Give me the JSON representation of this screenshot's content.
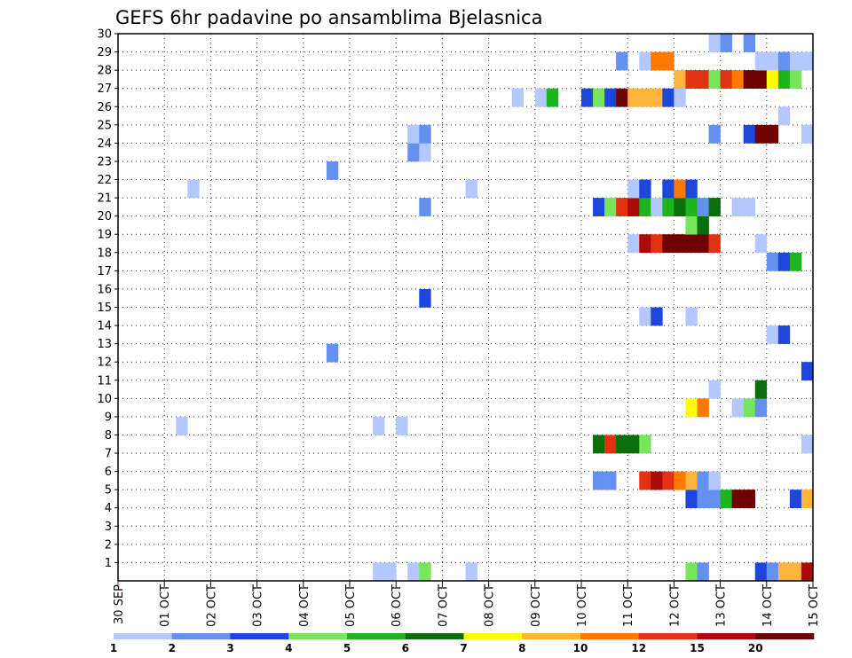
{
  "chart_data": {
    "type": "heatmap",
    "title": "GEFS 6hr padavine po ansamblima Bjelasnica",
    "x_tick_labels": [
      "30 SEP",
      "01 OCT",
      "02 OCT",
      "03 OCT",
      "04 OCT",
      "05 OCT",
      "06 OCT",
      "07 OCT",
      "08 OCT",
      "09 OCT",
      "10 OCT",
      "11 OCT",
      "12 OCT",
      "13 OCT",
      "14 OCT",
      "15 OCT"
    ],
    "y_tick_labels": [
      "1",
      "2",
      "3",
      "4",
      "5",
      "6",
      "7",
      "8",
      "9",
      "10",
      "11",
      "12",
      "13",
      "14",
      "15",
      "16",
      "17",
      "18",
      "19",
      "20",
      "21",
      "22",
      "23",
      "24",
      "25",
      "26",
      "27",
      "28",
      "29",
      "30"
    ],
    "x_unit": "6-hour step from 30 SEP 00Z",
    "x_range": [
      0,
      60
    ],
    "y_range": [
      0,
      30
    ],
    "grid": true,
    "colorbar": {
      "labels": [
        "1",
        "2",
        "3",
        "4",
        "5",
        "6",
        "7",
        "8",
        "10",
        "12",
        "15",
        "20"
      ],
      "colors": [
        "#b4c8ff",
        "#6490f0",
        "#1e46dc",
        "#78e65a",
        "#1eb41e",
        "#0a6e0a",
        "#ffff00",
        "#ffb43c",
        "#ff7800",
        "#e13214",
        "#aa0a0a",
        "#6e0000"
      ]
    },
    "cells": [
      {
        "t": 49,
        "m": 0,
        "c": 4
      },
      {
        "t": 50,
        "m": 0,
        "c": 2
      },
      {
        "t": 55,
        "m": 0,
        "c": 3
      },
      {
        "t": 56,
        "m": 0,
        "c": 2
      },
      {
        "t": 57,
        "m": 0,
        "c": 8
      },
      {
        "t": 58,
        "m": 0,
        "c": 8
      },
      {
        "t": 59,
        "m": 0,
        "c": 11
      },
      {
        "t": 22,
        "m": 0,
        "c": 1
      },
      {
        "t": 23,
        "m": 0,
        "c": 1
      },
      {
        "t": 25,
        "m": 0,
        "c": 1
      },
      {
        "t": 26,
        "m": 0,
        "c": 4
      },
      {
        "t": 30,
        "m": 0,
        "c": 1
      },
      {
        "t": 49,
        "m": 4,
        "c": 3
      },
      {
        "t": 50,
        "m": 4,
        "c": 2
      },
      {
        "t": 51,
        "m": 4,
        "c": 2
      },
      {
        "t": 52,
        "m": 4,
        "c": 5
      },
      {
        "t": 53,
        "m": 4,
        "c": 12
      },
      {
        "t": 54,
        "m": 4,
        "c": 12
      },
      {
        "t": 58,
        "m": 4,
        "c": 3
      },
      {
        "t": 59,
        "m": 4,
        "c": 8
      },
      {
        "t": 41,
        "m": 5,
        "c": 2
      },
      {
        "t": 42,
        "m": 5,
        "c": 2
      },
      {
        "t": 45,
        "m": 5,
        "c": 10
      },
      {
        "t": 46,
        "m": 5,
        "c": 11
      },
      {
        "t": 47,
        "m": 5,
        "c": 10
      },
      {
        "t": 48,
        "m": 5,
        "c": 9
      },
      {
        "t": 49,
        "m": 5,
        "c": 8
      },
      {
        "t": 50,
        "m": 5,
        "c": 2
      },
      {
        "t": 51,
        "m": 5,
        "c": 1
      },
      {
        "t": 41,
        "m": 7,
        "c": 6
      },
      {
        "t": 42,
        "m": 7,
        "c": 10
      },
      {
        "t": 43,
        "m": 7,
        "c": 6
      },
      {
        "t": 44,
        "m": 7,
        "c": 6
      },
      {
        "t": 45,
        "m": 7,
        "c": 4
      },
      {
        "t": 59,
        "m": 7,
        "c": 1
      },
      {
        "t": 5,
        "m": 8,
        "c": 1
      },
      {
        "t": 22,
        "m": 8,
        "c": 1
      },
      {
        "t": 24,
        "m": 8,
        "c": 1
      },
      {
        "t": 49,
        "m": 9,
        "c": 7
      },
      {
        "t": 50,
        "m": 9,
        "c": 9
      },
      {
        "t": 53,
        "m": 9,
        "c": 1
      },
      {
        "t": 54,
        "m": 9,
        "c": 4
      },
      {
        "t": 55,
        "m": 9,
        "c": 2
      },
      {
        "t": 51,
        "m": 10,
        "c": 1
      },
      {
        "t": 55,
        "m": 10,
        "c": 6
      },
      {
        "t": 59,
        "m": 11,
        "c": 3
      },
      {
        "t": 18,
        "m": 12,
        "c": 2
      },
      {
        "t": 56,
        "m": 13,
        "c": 1
      },
      {
        "t": 57,
        "m": 13,
        "c": 3
      },
      {
        "t": 45,
        "m": 14,
        "c": 1
      },
      {
        "t": 46,
        "m": 14,
        "c": 3
      },
      {
        "t": 49,
        "m": 14,
        "c": 1
      },
      {
        "t": 26,
        "m": 15,
        "c": 3
      },
      {
        "t": 56,
        "m": 17,
        "c": 2
      },
      {
        "t": 57,
        "m": 17,
        "c": 3
      },
      {
        "t": 58,
        "m": 17,
        "c": 5
      },
      {
        "t": 44,
        "m": 18,
        "c": 1
      },
      {
        "t": 45,
        "m": 18,
        "c": 11
      },
      {
        "t": 46,
        "m": 18,
        "c": 10
      },
      {
        "t": 47,
        "m": 18,
        "c": 12
      },
      {
        "t": 48,
        "m": 18,
        "c": 12
      },
      {
        "t": 49,
        "m": 18,
        "c": 12
      },
      {
        "t": 50,
        "m": 18,
        "c": 12
      },
      {
        "t": 51,
        "m": 18,
        "c": 10
      },
      {
        "t": 55,
        "m": 18,
        "c": 1
      },
      {
        "t": 49,
        "m": 19,
        "c": 4
      },
      {
        "t": 50,
        "m": 19,
        "c": 6
      },
      {
        "t": 26,
        "m": 20,
        "c": 2
      },
      {
        "t": 41,
        "m": 20,
        "c": 3
      },
      {
        "t": 42,
        "m": 20,
        "c": 4
      },
      {
        "t": 43,
        "m": 20,
        "c": 10
      },
      {
        "t": 44,
        "m": 20,
        "c": 11
      },
      {
        "t": 45,
        "m": 20,
        "c": 5
      },
      {
        "t": 46,
        "m": 20,
        "c": 1
      },
      {
        "t": 47,
        "m": 20,
        "c": 5
      },
      {
        "t": 48,
        "m": 20,
        "c": 6
      },
      {
        "t": 49,
        "m": 20,
        "c": 5
      },
      {
        "t": 50,
        "m": 20,
        "c": 2
      },
      {
        "t": 51,
        "m": 20,
        "c": 6
      },
      {
        "t": 53,
        "m": 20,
        "c": 1
      },
      {
        "t": 54,
        "m": 20,
        "c": 1
      },
      {
        "t": 6,
        "m": 21,
        "c": 1
      },
      {
        "t": 30,
        "m": 21,
        "c": 1
      },
      {
        "t": 44,
        "m": 21,
        "c": 1
      },
      {
        "t": 45,
        "m": 21,
        "c": 3
      },
      {
        "t": 47,
        "m": 21,
        "c": 3
      },
      {
        "t": 48,
        "m": 21,
        "c": 9
      },
      {
        "t": 49,
        "m": 21,
        "c": 3
      },
      {
        "t": 18,
        "m": 22,
        "c": 2
      },
      {
        "t": 25,
        "m": 23,
        "c": 2
      },
      {
        "t": 26,
        "m": 23,
        "c": 1
      },
      {
        "t": 25,
        "m": 24,
        "c": 1
      },
      {
        "t": 26,
        "m": 24,
        "c": 2
      },
      {
        "t": 51,
        "m": 24,
        "c": 2
      },
      {
        "t": 54,
        "m": 24,
        "c": 3
      },
      {
        "t": 55,
        "m": 24,
        "c": 12
      },
      {
        "t": 56,
        "m": 24,
        "c": 12
      },
      {
        "t": 59,
        "m": 24,
        "c": 1
      },
      {
        "t": 57,
        "m": 25,
        "c": 1
      },
      {
        "t": 34,
        "m": 26,
        "c": 1
      },
      {
        "t": 36,
        "m": 26,
        "c": 1
      },
      {
        "t": 37,
        "m": 26,
        "c": 5
      },
      {
        "t": 40,
        "m": 26,
        "c": 3
      },
      {
        "t": 41,
        "m": 26,
        "c": 4
      },
      {
        "t": 42,
        "m": 26,
        "c": 3
      },
      {
        "t": 43,
        "m": 26,
        "c": 12
      },
      {
        "t": 44,
        "m": 26,
        "c": 8
      },
      {
        "t": 45,
        "m": 26,
        "c": 8
      },
      {
        "t": 46,
        "m": 26,
        "c": 8
      },
      {
        "t": 47,
        "m": 26,
        "c": 3
      },
      {
        "t": 48,
        "m": 26,
        "c": 1
      },
      {
        "t": 48,
        "m": 27,
        "c": 8
      },
      {
        "t": 49,
        "m": 27,
        "c": 10
      },
      {
        "t": 50,
        "m": 27,
        "c": 10
      },
      {
        "t": 51,
        "m": 27,
        "c": 4
      },
      {
        "t": 52,
        "m": 27,
        "c": 10
      },
      {
        "t": 53,
        "m": 27,
        "c": 9
      },
      {
        "t": 54,
        "m": 27,
        "c": 12
      },
      {
        "t": 55,
        "m": 27,
        "c": 12
      },
      {
        "t": 56,
        "m": 27,
        "c": 7
      },
      {
        "t": 57,
        "m": 27,
        "c": 5
      },
      {
        "t": 58,
        "m": 27,
        "c": 4
      },
      {
        "t": 43,
        "m": 28,
        "c": 2
      },
      {
        "t": 45,
        "m": 28,
        "c": 1
      },
      {
        "t": 46,
        "m": 28,
        "c": 9
      },
      {
        "t": 47,
        "m": 28,
        "c": 9
      },
      {
        "t": 55,
        "m": 28,
        "c": 1
      },
      {
        "t": 56,
        "m": 28,
        "c": 1
      },
      {
        "t": 57,
        "m": 28,
        "c": 2
      },
      {
        "t": 58,
        "m": 28,
        "c": 1
      },
      {
        "t": 59,
        "m": 28,
        "c": 1
      },
      {
        "t": 51,
        "m": 29,
        "c": 1
      },
      {
        "t": 52,
        "m": 29,
        "c": 2
      },
      {
        "t": 54,
        "m": 29,
        "c": 2
      }
    ]
  }
}
